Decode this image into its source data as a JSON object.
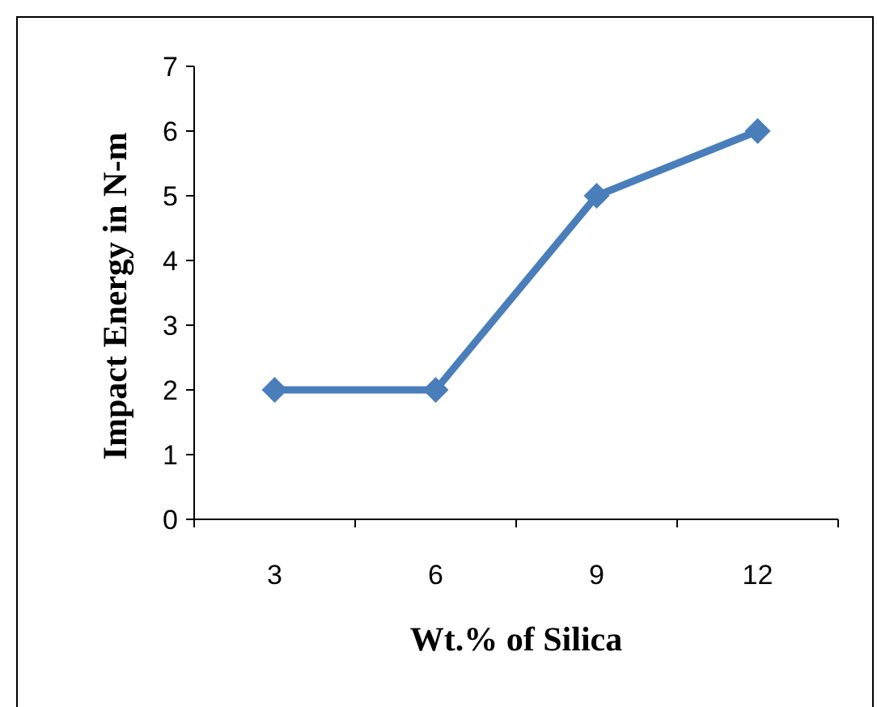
{
  "chart_data": {
    "type": "line",
    "xlabel": "Wt.% of Silica",
    "ylabel": "Impact Energy in N-m",
    "categories": [
      "3",
      "6",
      "9",
      "12"
    ],
    "series": [
      {
        "color": "#4a7ebb",
        "values": [
          2,
          2,
          5,
          6
        ]
      }
    ],
    "ylim": [
      0,
      7
    ],
    "yticks": [
      0,
      1,
      2,
      3,
      4,
      5,
      6,
      7
    ],
    "grid": false,
    "marker": "diamond",
    "line_style": "solid"
  }
}
